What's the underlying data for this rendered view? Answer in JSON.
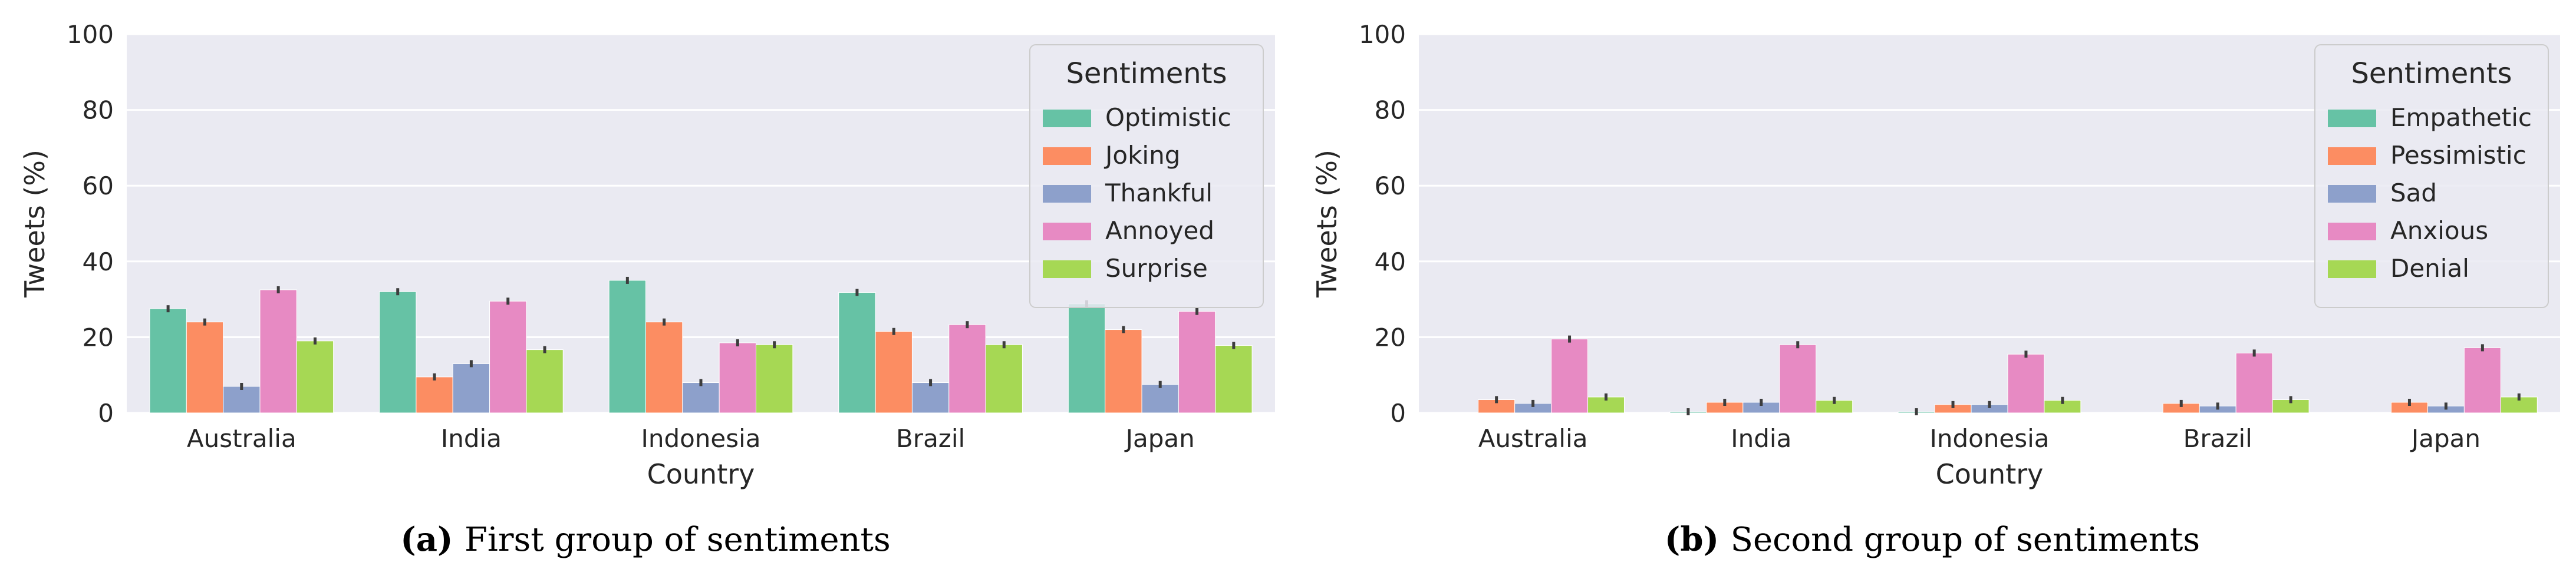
{
  "colors": {
    "panel_background": "#eaeaf2",
    "grid": "#ffffff",
    "error_bar": "#3d3d3d",
    "series": [
      "#66c2a5",
      "#fc8d62",
      "#8da0cb",
      "#e78ac3",
      "#a6d854"
    ]
  },
  "chart_data": [
    {
      "type": "bar",
      "categories": [
        "Australia",
        "India",
        "Indonesia",
        "Brazil",
        "Japan"
      ],
      "xlabel": "Country",
      "ylabel": "Tweets (%)",
      "ylim": [
        0,
        100
      ],
      "yticks": [
        0,
        20,
        40,
        60,
        80,
        100
      ],
      "grid": true,
      "legend": {
        "title": "Sentiments",
        "placement": "top-right"
      },
      "series": [
        {
          "name": "Optimistic",
          "values": [
            27.5,
            32.0,
            35.0,
            31.8,
            28.8
          ]
        },
        {
          "name": "Joking",
          "values": [
            24.0,
            9.5,
            24.0,
            21.5,
            22.0
          ]
        },
        {
          "name": "Thankful",
          "values": [
            7.0,
            13.0,
            8.0,
            8.0,
            7.5
          ]
        },
        {
          "name": "Annoyed",
          "values": [
            32.5,
            29.5,
            18.5,
            23.3,
            26.8
          ]
        },
        {
          "name": "Surprise",
          "values": [
            19.0,
            16.7,
            18.0,
            18.0,
            17.8
          ]
        }
      ],
      "caption": {
        "letter": "(a)",
        "text": "First group of sentiments"
      }
    },
    {
      "type": "bar",
      "categories": [
        "Australia",
        "India",
        "Indonesia",
        "Brazil",
        "Japan"
      ],
      "xlabel": "Country",
      "ylabel": "Tweets (%)",
      "ylim": [
        0,
        100
      ],
      "yticks": [
        0,
        20,
        40,
        60,
        80,
        100
      ],
      "grid": true,
      "legend": {
        "title": "Sentiments",
        "placement": "top-right"
      },
      "series": [
        {
          "name": "Empathetic",
          "values": [
            0.0,
            0.3,
            0.3,
            0.0,
            0.0
          ]
        },
        {
          "name": "Pessimistic",
          "values": [
            3.5,
            2.8,
            2.2,
            2.5,
            2.8
          ]
        },
        {
          "name": "Sad",
          "values": [
            2.5,
            2.8,
            2.2,
            1.8,
            1.8
          ]
        },
        {
          "name": "Anxious",
          "values": [
            19.5,
            18.0,
            15.5,
            15.8,
            17.2
          ]
        },
        {
          "name": "Denial",
          "values": [
            4.2,
            3.3,
            3.3,
            3.5,
            4.2
          ]
        }
      ],
      "caption": {
        "letter": "(b)",
        "text": "Second group of sentiments"
      }
    }
  ]
}
